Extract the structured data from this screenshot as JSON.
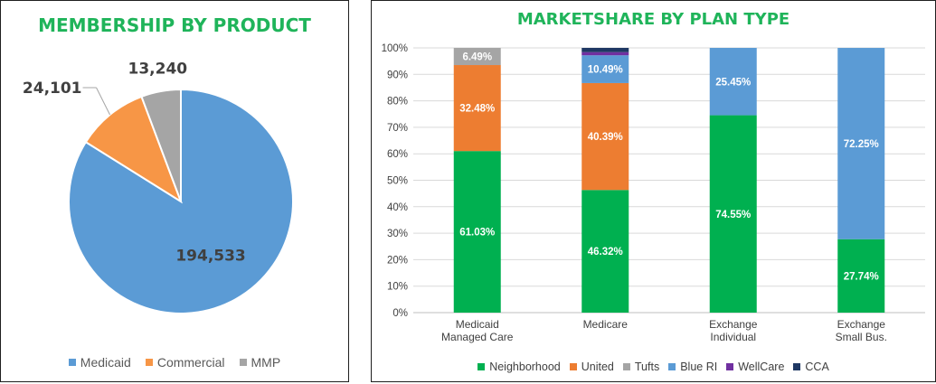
{
  "chart_data": [
    {
      "type": "pie",
      "title": "MEMBERSHIP BY PRODUCT",
      "categories": [
        "Medicaid",
        "Commercial",
        "MMP"
      ],
      "values": [
        194533,
        24101,
        13240
      ],
      "labels": [
        "194,533",
        "24,101",
        "13,240"
      ],
      "colors": [
        "#5b9bd5",
        "#f79646",
        "#a5a5a5"
      ],
      "legend_position": "bottom"
    },
    {
      "type": "bar",
      "stacked": true,
      "title": "MARKETSHARE BY PLAN TYPE",
      "categories": [
        [
          "Medicaid",
          "Managed Care"
        ],
        [
          "Medicare"
        ],
        [
          "Exchange",
          "Individual"
        ],
        [
          "Exchange",
          "Small Bus."
        ]
      ],
      "series": [
        {
          "name": "Neighborhood",
          "color": "#00b050",
          "values": [
            61.03,
            46.32,
            74.55,
            27.74
          ]
        },
        {
          "name": "United",
          "color": "#ed7d31",
          "values": [
            32.48,
            40.39,
            0,
            0
          ]
        },
        {
          "name": "Tufts",
          "color": "#a5a5a5",
          "values": [
            6.49,
            0,
            0,
            0
          ]
        },
        {
          "name": "Blue RI",
          "color": "#5b9bd5",
          "values": [
            0,
            10.49,
            25.45,
            72.25
          ]
        },
        {
          "name": "WellCare",
          "color": "#7030a0",
          "values": [
            0,
            1.2,
            0,
            0
          ]
        },
        {
          "name": "CCA",
          "color": "#1f3864",
          "values": [
            0,
            1.6,
            0,
            0
          ]
        }
      ],
      "data_labels": [
        [
          "61.03%",
          "46.32%",
          "74.55%",
          "27.74%"
        ],
        [
          "32.48%",
          "40.39%",
          "",
          ""
        ],
        [
          "6.49%",
          "",
          "",
          ""
        ],
        [
          "",
          "10.49%",
          "25.45%",
          "72.25%"
        ],
        [
          "",
          "",
          "",
          ""
        ],
        [
          "",
          "",
          "",
          ""
        ]
      ],
      "y_ticks": [
        "0%",
        "10%",
        "20%",
        "30%",
        "40%",
        "50%",
        "60%",
        "70%",
        "80%",
        "90%",
        "100%"
      ],
      "ylim": [
        0,
        100
      ],
      "grid": true,
      "legend_position": "bottom"
    }
  ]
}
